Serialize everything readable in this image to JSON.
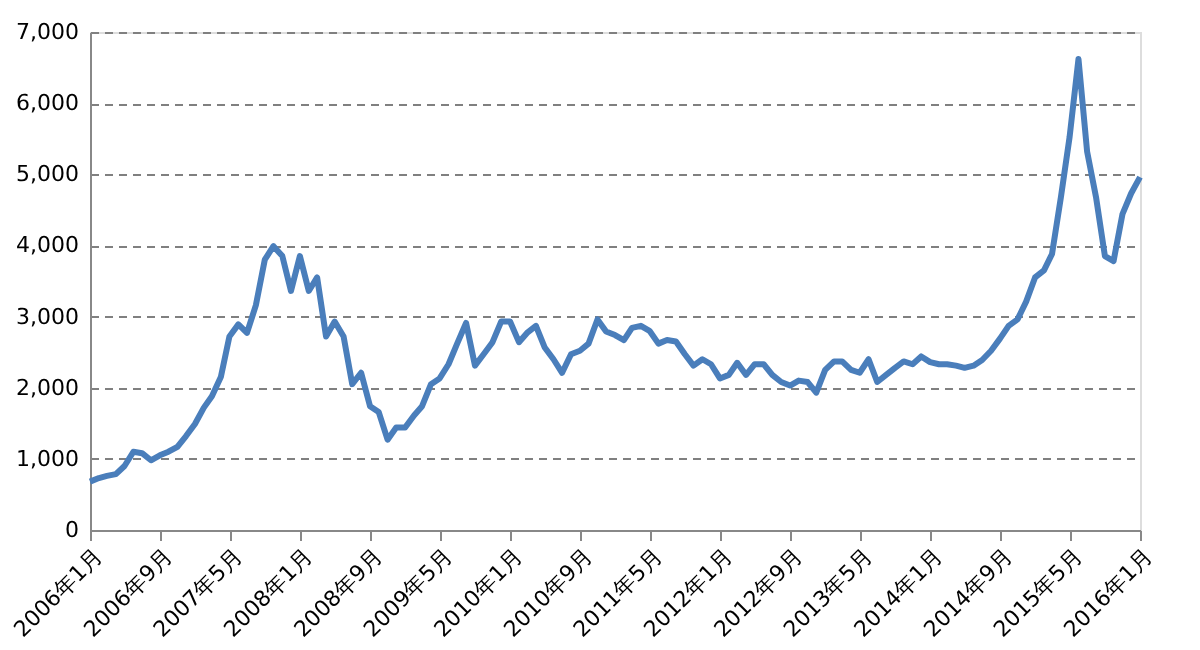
{
  "chart_data": {
    "type": "line",
    "x": [
      "2006-01",
      "2006-02",
      "2006-03",
      "2006-04",
      "2006-05",
      "2006-06",
      "2006-07",
      "2006-08",
      "2006-09",
      "2006-10",
      "2006-11",
      "2006-12",
      "2007-01",
      "2007-02",
      "2007-03",
      "2007-04",
      "2007-05",
      "2007-06",
      "2007-07",
      "2007-08",
      "2007-09",
      "2007-10",
      "2007-11",
      "2007-12",
      "2008-01",
      "2008-02",
      "2008-03",
      "2008-04",
      "2008-05",
      "2008-06",
      "2008-07",
      "2008-08",
      "2008-09",
      "2008-10",
      "2008-11",
      "2008-12",
      "2009-01",
      "2009-02",
      "2009-03",
      "2009-04",
      "2009-05",
      "2009-06",
      "2009-07",
      "2009-08",
      "2009-09",
      "2009-10",
      "2009-11",
      "2009-12",
      "2010-01",
      "2010-02",
      "2010-03",
      "2010-04",
      "2010-05",
      "2010-06",
      "2010-07",
      "2010-08",
      "2010-09",
      "2010-10",
      "2010-11",
      "2010-12",
      "2011-01",
      "2011-02",
      "2011-03",
      "2011-04",
      "2011-05",
      "2011-06",
      "2011-07",
      "2011-08",
      "2011-09",
      "2011-10",
      "2011-11",
      "2011-12",
      "2012-01",
      "2012-02",
      "2012-03",
      "2012-04",
      "2012-05",
      "2012-06",
      "2012-07",
      "2012-08",
      "2012-09",
      "2012-10",
      "2012-11",
      "2012-12",
      "2013-01",
      "2013-02",
      "2013-03",
      "2013-04",
      "2013-05",
      "2013-06",
      "2013-07",
      "2013-08",
      "2013-09",
      "2013-10",
      "2013-11",
      "2013-12",
      "2014-01",
      "2014-02",
      "2014-03",
      "2014-04",
      "2014-05",
      "2014-06",
      "2014-07",
      "2014-08",
      "2014-09",
      "2014-10",
      "2014-11",
      "2014-12",
      "2015-01",
      "2015-02",
      "2015-03",
      "2015-04",
      "2015-05",
      "2015-06",
      "2015-07",
      "2015-08",
      "2015-09",
      "2015-10",
      "2015-11",
      "2015-12",
      "2016-01"
    ],
    "series": [
      {
        "color": "#4a7ebb",
        "values": [
          680,
          730,
          760,
          785,
          900,
          1100,
          1080,
          980,
          1050,
          1100,
          1170,
          1320,
          1490,
          1720,
          1880,
          2150,
          2720,
          2890,
          2770,
          3160,
          3800,
          3990,
          3850,
          3360,
          3850,
          3360,
          3550,
          2720,
          2930,
          2720,
          2050,
          2210,
          1740,
          1660,
          1270,
          1440,
          1440,
          1610,
          1740,
          2050,
          2130,
          2330,
          2620,
          2910,
          2310,
          2470,
          2640,
          2930,
          2930,
          2640,
          2770,
          2870,
          2570,
          2400,
          2210,
          2470,
          2520,
          2620,
          2960,
          2790,
          2740,
          2670,
          2840,
          2870,
          2800,
          2620,
          2670,
          2650,
          2470,
          2310,
          2400,
          2330,
          2130,
          2180,
          2350,
          2180,
          2330,
          2330,
          2180,
          2080,
          2030,
          2100,
          2080,
          1930,
          2250,
          2370,
          2370,
          2250,
          2210,
          2400,
          2080,
          2180,
          2280,
          2370,
          2330,
          2440,
          2360,
          2330,
          2330,
          2310,
          2280,
          2310,
          2390,
          2520,
          2690,
          2870,
          2960,
          3210,
          3550,
          3650,
          3880,
          4680,
          5520,
          6620,
          5320,
          4680,
          3850,
          3780,
          4440,
          4730,
          4960
        ]
      }
    ],
    "xlim": [
      "2006-01",
      "2016-01"
    ],
    "xticks": [
      {
        "value": "2006-01",
        "label": "2006年1月"
      },
      {
        "value": "2006-09",
        "label": "2006年9月"
      },
      {
        "value": "2007-05",
        "label": "2007年5月"
      },
      {
        "value": "2008-01",
        "label": "2008年1月"
      },
      {
        "value": "2008-09",
        "label": "2008年9月"
      },
      {
        "value": "2009-05",
        "label": "2009年5月"
      },
      {
        "value": "2010-01",
        "label": "2010年1月"
      },
      {
        "value": "2010-09",
        "label": "2010年9月"
      },
      {
        "value": "2011-05",
        "label": "2011年5月"
      },
      {
        "value": "2012-01",
        "label": "2012年1月"
      },
      {
        "value": "2012-09",
        "label": "2012年9月"
      },
      {
        "value": "2013-05",
        "label": "2013年5月"
      },
      {
        "value": "2014-01",
        "label": "2014年1月"
      },
      {
        "value": "2014-09",
        "label": "2014年9月"
      },
      {
        "value": "2015-05",
        "label": "2015年5月"
      },
      {
        "value": "2016-01",
        "label": "2016年1月"
      }
    ],
    "ylim": [
      0,
      7000
    ],
    "yticks": [
      {
        "value": 0,
        "label": "0"
      },
      {
        "value": 1000,
        "label": "1,000"
      },
      {
        "value": 2000,
        "label": "2,000"
      },
      {
        "value": 3000,
        "label": "3,000"
      },
      {
        "value": 4000,
        "label": "4,000"
      },
      {
        "value": 5000,
        "label": "5,000"
      },
      {
        "value": 6000,
        "label": "6,000"
      },
      {
        "value": 7000,
        "label": "7,000"
      }
    ],
    "grid": "y",
    "line_style": "solid",
    "marker": "none",
    "legend": false
  }
}
